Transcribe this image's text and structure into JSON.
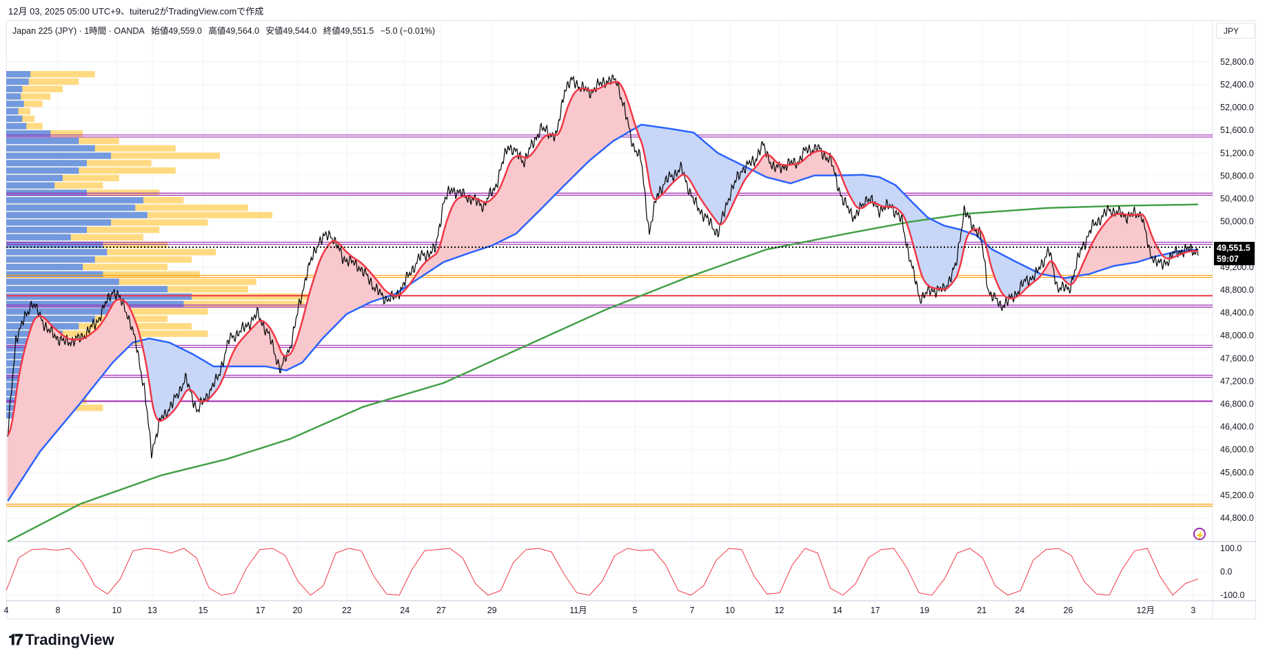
{
  "caption": "12月 03, 2025 05:00 UTC+9、tuiteru2がTradingView.comで作成",
  "legend": {
    "symbol": "Japan 225 (JPY) · 1時間 · OANDA",
    "open": "始値49,559.0",
    "high": "高値49,564.0",
    "low": "安値49,544.0",
    "close": "終値49,551.5",
    "change": "−5.0 (−0.01%)"
  },
  "currency_button": "JPY",
  "current_price": {
    "value": 49551.5,
    "label": "49,551.5",
    "countdown": "59:07"
  },
  "logo_text": "TradingView",
  "colors": {
    "ema_fast": "#f23645",
    "ema_mid": "#2962ff",
    "sma_long": "#43a047",
    "price": "#000000",
    "fill_up": "#f8c8cc",
    "fill_down": "#c8d6f7",
    "vp_buy": "#5b8def",
    "vp_sell": "#ffd36b",
    "osc": "#f23645"
  },
  "chart_data": {
    "type": "line",
    "title": "Japan 225 (JPY) 1時間",
    "ylim": [
      44390,
      53535
    ],
    "xlim": [
      0,
      1495
    ],
    "price_ticks": [
      "52,800.0",
      "52,400.0",
      "52,000.0",
      "51,600.0",
      "51,200.0",
      "50,800.0",
      "50,400.0",
      "50,000.0",
      "49,200.0",
      "48,800.0",
      "48,400.0",
      "48,000.0",
      "47,600.0",
      "47,200.0",
      "46,800.0",
      "46,400.0",
      "46,000.0",
      "45,600.0",
      "45,200.0",
      "44,800.0"
    ],
    "price_tick_values": [
      52800,
      52400,
      52000,
      51600,
      51200,
      50800,
      50400,
      50000,
      49200,
      48800,
      48400,
      48000,
      47600,
      47200,
      46800,
      46400,
      46000,
      45600,
      45200,
      44800
    ],
    "time_ticks": [
      {
        "bar": 0,
        "label": "4"
      },
      {
        "bar": 64,
        "label": "8"
      },
      {
        "bar": 137,
        "label": "10"
      },
      {
        "bar": 181,
        "label": "13"
      },
      {
        "bar": 244,
        "label": "15"
      },
      {
        "bar": 315,
        "label": "17"
      },
      {
        "bar": 361,
        "label": "20"
      },
      {
        "bar": 422,
        "label": "22"
      },
      {
        "bar": 494,
        "label": "24"
      },
      {
        "bar": 539,
        "label": "27"
      },
      {
        "bar": 602,
        "label": "29"
      },
      {
        "bar": 709,
        "label": "11月"
      },
      {
        "bar": 779,
        "label": "5"
      },
      {
        "bar": 850,
        "label": "7"
      },
      {
        "bar": 897,
        "label": "10"
      },
      {
        "bar": 958,
        "label": "12"
      },
      {
        "bar": 1030,
        "label": "14"
      },
      {
        "bar": 1077,
        "label": "17"
      },
      {
        "bar": 1138,
        "label": "19"
      },
      {
        "bar": 1209,
        "label": "21"
      },
      {
        "bar": 1256,
        "label": "24"
      },
      {
        "bar": 1316,
        "label": "26"
      },
      {
        "bar": 1412,
        "label": "12月"
      },
      {
        "bar": 1471,
        "label": "3"
      }
    ],
    "price": [
      [
        2,
        46260
      ],
      [
        12,
        47950
      ],
      [
        32,
        48590
      ],
      [
        52,
        48090
      ],
      [
        72,
        47880
      ],
      [
        92,
        47950
      ],
      [
        112,
        48230
      ],
      [
        132,
        48800
      ],
      [
        147,
        48520
      ],
      [
        162,
        47810
      ],
      [
        172,
        46960
      ],
      [
        180,
        45970
      ],
      [
        192,
        46540
      ],
      [
        207,
        46820
      ],
      [
        222,
        47250
      ],
      [
        237,
        46680
      ],
      [
        262,
        47250
      ],
      [
        277,
        47950
      ],
      [
        292,
        48090
      ],
      [
        312,
        48380
      ],
      [
        327,
        47950
      ],
      [
        340,
        47390
      ],
      [
        352,
        47810
      ],
      [
        372,
        49080
      ],
      [
        387,
        49650
      ],
      [
        402,
        49790
      ],
      [
        417,
        49370
      ],
      [
        437,
        49220
      ],
      [
        452,
        48940
      ],
      [
        467,
        48660
      ],
      [
        482,
        48660
      ],
      [
        497,
        49010
      ],
      [
        512,
        49370
      ],
      [
        532,
        49510
      ],
      [
        542,
        50350
      ],
      [
        552,
        50570
      ],
      [
        572,
        50430
      ],
      [
        592,
        50280
      ],
      [
        607,
        50640
      ],
      [
        622,
        51340
      ],
      [
        642,
        51060
      ],
      [
        662,
        51630
      ],
      [
        682,
        51490
      ],
      [
        692,
        52330
      ],
      [
        702,
        52470
      ],
      [
        722,
        52260
      ],
      [
        742,
        52470
      ],
      [
        757,
        52470
      ],
      [
        767,
        51910
      ],
      [
        777,
        51340
      ],
      [
        787,
        51060
      ],
      [
        797,
        49790
      ],
      [
        807,
        50500
      ],
      [
        822,
        50780
      ],
      [
        837,
        50920
      ],
      [
        852,
        50350
      ],
      [
        867,
        50070
      ],
      [
        882,
        49790
      ],
      [
        897,
        50500
      ],
      [
        912,
        50920
      ],
      [
        927,
        51060
      ],
      [
        937,
        51340
      ],
      [
        952,
        50920
      ],
      [
        967,
        50990
      ],
      [
        982,
        51060
      ],
      [
        992,
        51270
      ],
      [
        1007,
        51270
      ],
      [
        1022,
        51060
      ],
      [
        1037,
        50350
      ],
      [
        1052,
        50070
      ],
      [
        1067,
        50430
      ],
      [
        1082,
        50210
      ],
      [
        1097,
        50280
      ],
      [
        1110,
        50000
      ],
      [
        1122,
        49220
      ],
      [
        1132,
        48660
      ],
      [
        1147,
        48800
      ],
      [
        1162,
        48800
      ],
      [
        1177,
        49220
      ],
      [
        1187,
        50210
      ],
      [
        1197,
        49930
      ],
      [
        1207,
        49790
      ],
      [
        1217,
        48800
      ],
      [
        1232,
        48520
      ],
      [
        1247,
        48660
      ],
      [
        1262,
        48940
      ],
      [
        1277,
        49080
      ],
      [
        1292,
        49510
      ],
      [
        1302,
        48870
      ],
      [
        1317,
        48800
      ],
      [
        1332,
        49510
      ],
      [
        1347,
        49930
      ],
      [
        1367,
        50210
      ],
      [
        1387,
        50100
      ],
      [
        1407,
        50140
      ],
      [
        1417,
        49440
      ],
      [
        1432,
        49220
      ],
      [
        1447,
        49440
      ],
      [
        1462,
        49510
      ],
      [
        1477,
        49480
      ]
    ],
    "ema_mid": [
      [
        2,
        45100
      ],
      [
        42,
        45970
      ],
      [
        92,
        46820
      ],
      [
        132,
        47530
      ],
      [
        157,
        47880
      ],
      [
        177,
        47950
      ],
      [
        202,
        47880
      ],
      [
        232,
        47670
      ],
      [
        257,
        47460
      ],
      [
        292,
        47460
      ],
      [
        322,
        47460
      ],
      [
        347,
        47390
      ],
      [
        367,
        47530
      ],
      [
        392,
        47950
      ],
      [
        422,
        48380
      ],
      [
        452,
        48590
      ],
      [
        482,
        48730
      ],
      [
        512,
        49010
      ],
      [
        542,
        49290
      ],
      [
        572,
        49440
      ],
      [
        602,
        49580
      ],
      [
        632,
        49790
      ],
      [
        662,
        50210
      ],
      [
        692,
        50640
      ],
      [
        722,
        51060
      ],
      [
        752,
        51410
      ],
      [
        787,
        51700
      ],
      [
        822,
        51630
      ],
      [
        852,
        51560
      ],
      [
        882,
        51200
      ],
      [
        912,
        50990
      ],
      [
        942,
        50780
      ],
      [
        972,
        50670
      ],
      [
        1002,
        50810
      ],
      [
        1032,
        50810
      ],
      [
        1062,
        50820
      ],
      [
        1082,
        50780
      ],
      [
        1102,
        50640
      ],
      [
        1122,
        50350
      ],
      [
        1142,
        50070
      ],
      [
        1162,
        49930
      ],
      [
        1182,
        49860
      ],
      [
        1202,
        49760
      ],
      [
        1222,
        49510
      ],
      [
        1252,
        49290
      ],
      [
        1282,
        49080
      ],
      [
        1312,
        49010
      ],
      [
        1342,
        49080
      ],
      [
        1372,
        49220
      ],
      [
        1402,
        49290
      ],
      [
        1422,
        49380
      ],
      [
        1452,
        49480
      ],
      [
        1477,
        49510
      ]
    ],
    "sma_long": [
      [
        2,
        44390
      ],
      [
        92,
        45050
      ],
      [
        192,
        45550
      ],
      [
        272,
        45830
      ],
      [
        352,
        46190
      ],
      [
        442,
        46750
      ],
      [
        542,
        47170
      ],
      [
        642,
        47810
      ],
      [
        742,
        48450
      ],
      [
        842,
        49010
      ],
      [
        942,
        49510
      ],
      [
        1042,
        49790
      ],
      [
        1122,
        50000
      ],
      [
        1192,
        50140
      ],
      [
        1292,
        50240
      ],
      [
        1392,
        50280
      ],
      [
        1477,
        50300
      ]
    ],
    "ema_fast_period": 20,
    "levels": [
      {
        "price": 51500,
        "color": "#9c27b0",
        "double": true
      },
      {
        "price": 50480,
        "color": "#9c27b0",
        "double": true
      },
      {
        "price": 49620,
        "color": "#9c27b0",
        "double": true
      },
      {
        "price": 49040,
        "color": "#ff9800",
        "double": true
      },
      {
        "price": 48700,
        "color": "#f23645",
        "double": false
      },
      {
        "price": 48517,
        "color": "#9c27b0",
        "double": true
      },
      {
        "price": 47811,
        "color": "#9c27b0",
        "double": true
      },
      {
        "price": 47288,
        "color": "#9c27b0",
        "double": true
      },
      {
        "price": 46850,
        "color": "#9c27b0",
        "double": false
      },
      {
        "price": 45026,
        "color": "#ff9800",
        "double": true
      }
    ],
    "volume_profile": {
      "top_price": 52640,
      "step": 130,
      "rows": [
        [
          30,
          110
        ],
        [
          28,
          90
        ],
        [
          20,
          70
        ],
        [
          18,
          55
        ],
        [
          22,
          45
        ],
        [
          15,
          30
        ],
        [
          20,
          35
        ],
        [
          25,
          45
        ],
        [
          55,
          95
        ],
        [
          90,
          140
        ],
        [
          110,
          210
        ],
        [
          130,
          265
        ],
        [
          100,
          180
        ],
        [
          90,
          210
        ],
        [
          70,
          140
        ],
        [
          60,
          120
        ],
        [
          100,
          190
        ],
        [
          170,
          220
        ],
        [
          160,
          300
        ],
        [
          175,
          330
        ],
        [
          130,
          250
        ],
        [
          100,
          190
        ],
        [
          80,
          170
        ],
        [
          120,
          200
        ],
        [
          125,
          260
        ],
        [
          110,
          230
        ],
        [
          95,
          200
        ],
        [
          120,
          240
        ],
        [
          140,
          310
        ],
        [
          200,
          300
        ],
        [
          230,
          390
        ],
        [
          220,
          370
        ],
        [
          150,
          250
        ],
        [
          110,
          200
        ],
        [
          90,
          230
        ],
        [
          70,
          250
        ],
        [
          75,
          170
        ],
        [
          60,
          130
        ],
        [
          50,
          110
        ],
        [
          45,
          100
        ],
        [
          40,
          80
        ],
        [
          35,
          70
        ],
        [
          30,
          60
        ],
        [
          35,
          85
        ],
        [
          40,
          100
        ],
        [
          50,
          120
        ],
        [
          30,
          60
        ]
      ]
    },
    "oscillator": {
      "ticks": [
        "100.0",
        "0.0",
        "-100.0"
      ],
      "tick_values": [
        100,
        0,
        -100
      ],
      "values": [
        -80,
        60,
        95,
        98,
        92,
        100,
        40,
        -60,
        -95,
        -30,
        90,
        100,
        95,
        80,
        100,
        60,
        -70,
        -100,
        -90,
        20,
        95,
        100,
        70,
        -40,
        -100,
        -60,
        80,
        100,
        90,
        -20,
        -95,
        -100,
        10,
        90,
        95,
        100,
        60,
        -50,
        -100,
        -80,
        40,
        95,
        100,
        85,
        -10,
        -90,
        -100,
        -40,
        70,
        100,
        90,
        95,
        30,
        -80,
        -100,
        -60,
        50,
        100,
        95,
        -20,
        -95,
        -90,
        30,
        100,
        80,
        -70,
        -100,
        -50,
        60,
        95,
        100,
        20,
        -90,
        -100,
        -30,
        80,
        100,
        60,
        -60,
        -100,
        -80,
        50,
        95,
        100,
        70,
        -40,
        -95,
        -100,
        10,
        90,
        100,
        -20,
        -100,
        -50,
        -30
      ]
    }
  }
}
